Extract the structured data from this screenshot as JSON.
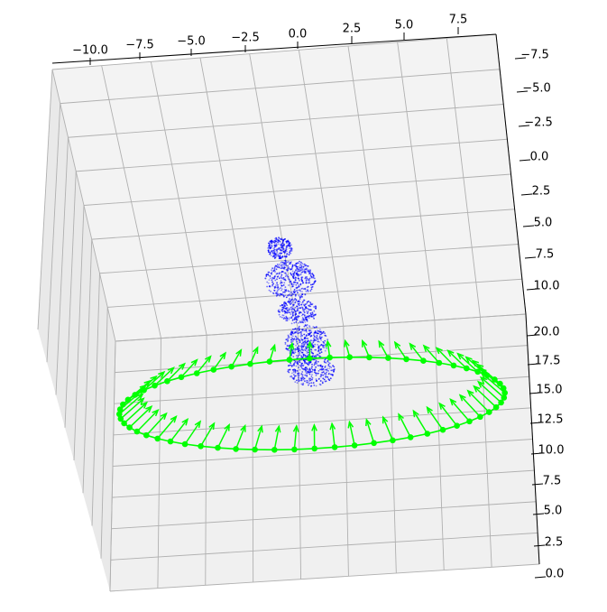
{
  "chart_data": {
    "type": "scatter",
    "projection": "3d",
    "title": "",
    "xlabel": "",
    "ylabel": "",
    "zlabel": "",
    "grid": true,
    "axes": {
      "x": {
        "ticks": [
          "−10.0",
          "−7.5",
          "−5.0",
          "−2.5",
          "0.0",
          "2.5",
          "5.0",
          "7.5"
        ],
        "range": [
          -11,
          9
        ]
      },
      "y": {
        "ticks": [
          "−7.5",
          "−5.0",
          "−2.5",
          "0.0",
          "2.5",
          "5.0",
          "7.5",
          "10.0"
        ],
        "range": [
          -8,
          11
        ]
      },
      "z": {
        "ticks": [
          "20.0",
          "17.5",
          "15.0",
          "12.5",
          "10.0",
          "7.5",
          "5.0",
          "2.5",
          "0.0"
        ],
        "range": [
          0,
          21
        ]
      }
    },
    "series": [
      {
        "kind": "point-cloud",
        "color": "#0000ff",
        "description_shape": "statue on pedestal",
        "points": [
          {
            "x": 0.0,
            "y": 0.5,
            "z": 13.5
          },
          {
            "x": -0.5,
            "y": 1.5,
            "z": 12.5
          },
          {
            "x": 0.5,
            "y": 1.0,
            "z": 12.0
          },
          {
            "x": 0.8,
            "y": 2.5,
            "z": 9.5
          },
          {
            "x": 1.2,
            "y": 3.5,
            "z": 5.0
          }
        ]
      },
      {
        "kind": "camera-poses",
        "color": "#00ff00",
        "marker": "dot-with-arrow",
        "count": 60,
        "path": "closed elliptical ring around the point cloud"
      }
    ]
  },
  "colors": {
    "cloud": "#0000ff",
    "cameras": "#00ff00",
    "pane": "#f2f2f2",
    "grid": "#b0b0b0",
    "axis": "#000000"
  }
}
